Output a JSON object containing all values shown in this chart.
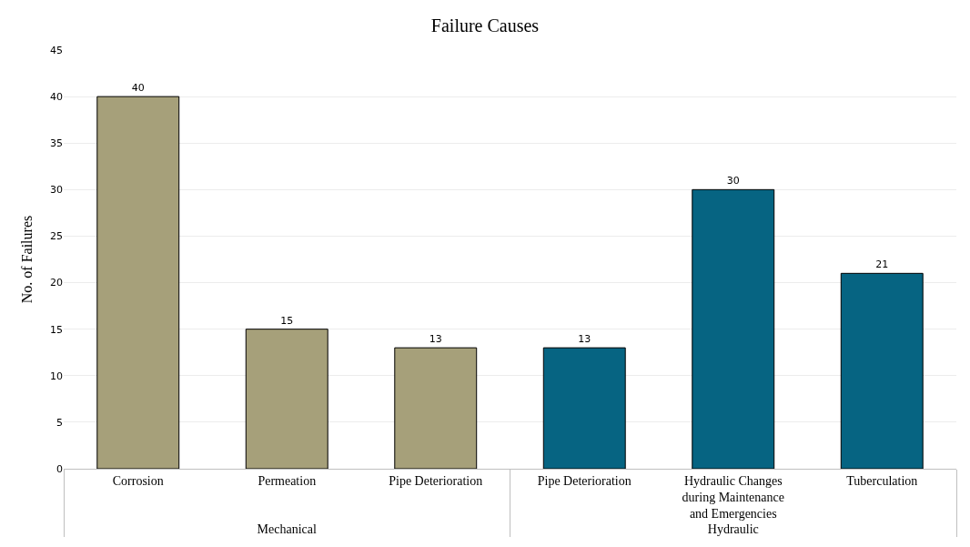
{
  "chart_data": {
    "type": "bar",
    "title": "Failure Causes",
    "ylabel": "No. of Failures",
    "categories": [
      "Corrosion",
      "Permeation",
      "Pipe Deterioration",
      "Pipe Deterioration",
      "Hydraulic Changes during Maintenance and Emergencies",
      "Tuberculation"
    ],
    "values": [
      40,
      15,
      13,
      13,
      30,
      21
    ],
    "colors": [
      "#a6a07a",
      "#a6a07a",
      "#a6a07a",
      "#066482",
      "#066482",
      "#066482"
    ],
    "annotations": [
      "Mechanical",
      "Hydraulic"
    ],
    "ylim": [
      0,
      45
    ],
    "yticks": [
      0,
      5,
      10,
      15,
      20,
      25,
      30,
      35,
      40,
      45
    ],
    "grid": "y",
    "data_labels": true,
    "legend": false
  }
}
